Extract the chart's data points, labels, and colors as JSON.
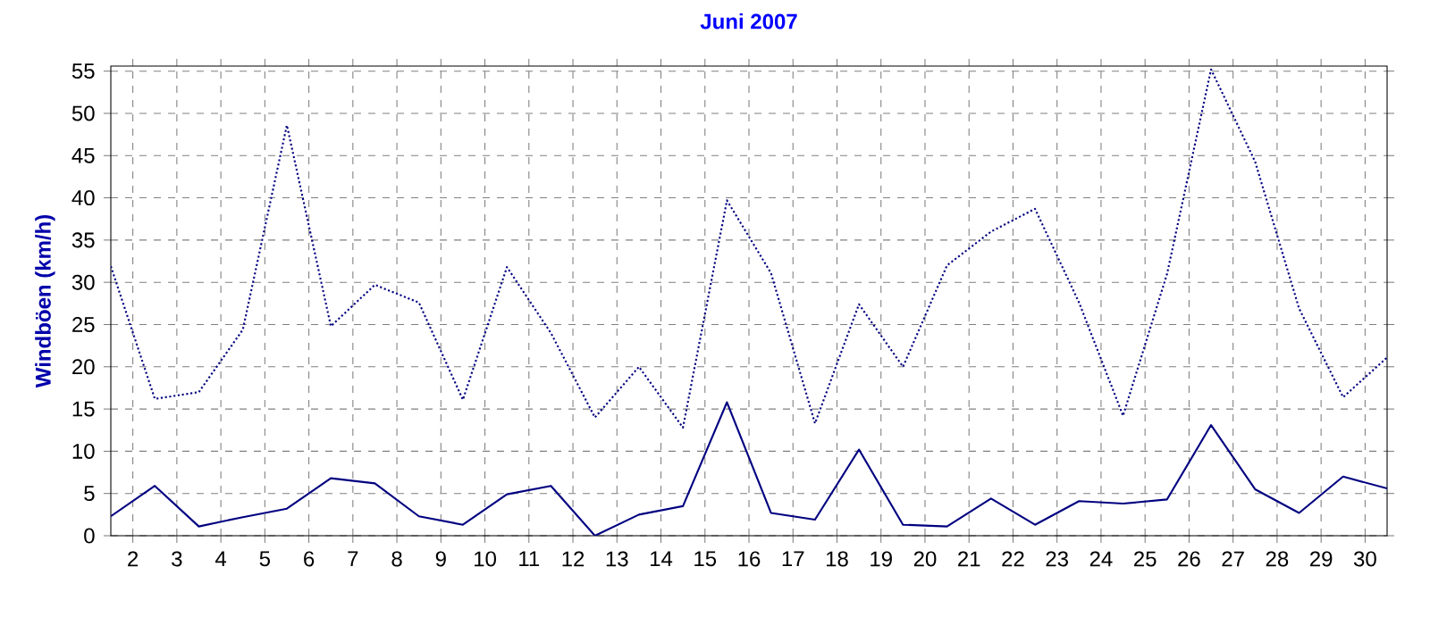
{
  "chart_data": {
    "type": "line",
    "title": "Juni 2007",
    "ylabel": "Windböen  (km/h)",
    "x": [
      1.5,
      2.5,
      3.5,
      4.5,
      5.5,
      6.5,
      7.5,
      8.5,
      9.5,
      10.5,
      11.5,
      12.5,
      13.5,
      14.5,
      15.5,
      16.5,
      17.5,
      18.5,
      19.5,
      20.5,
      21.5,
      22.5,
      23.5,
      24.5,
      25.5,
      26.5,
      27.5,
      28.5,
      29.5,
      30.5
    ],
    "series": [
      {
        "color": "#000080",
        "line_style": "dotted",
        "values": [
          31.9,
          16.2,
          17.0,
          24.4,
          48.6,
          24.8,
          29.7,
          27.6,
          16.1,
          31.8,
          24.0,
          14.0,
          20.0,
          12.8,
          39.7,
          31.1,
          13.3,
          27.4,
          20.0,
          32.0,
          36.0,
          38.7,
          27.6,
          14.2,
          31.0,
          55.2,
          44.3,
          26.9,
          16.4,
          21.1
        ]
      },
      {
        "color": "#000080",
        "line_style": "solid",
        "values": [
          2.3,
          5.9,
          1.1,
          2.2,
          3.2,
          6.8,
          6.2,
          2.3,
          1.3,
          4.9,
          5.9,
          0,
          2.5,
          3.5,
          15.8,
          2.7,
          1.9,
          10.2,
          1.3,
          1.1,
          4.4,
          1.3,
          4.1,
          3.8,
          4.3,
          13.1,
          5.5,
          2.7,
          7.0,
          5.6
        ]
      }
    ],
    "xlim": [
      1.5,
      30.5
    ],
    "ylim": [
      0,
      55.6
    ],
    "xticks": [
      2,
      3,
      4,
      5,
      6,
      7,
      8,
      9,
      10,
      11,
      12,
      13,
      14,
      15,
      16,
      17,
      18,
      19,
      20,
      21,
      22,
      23,
      24,
      25,
      26,
      27,
      28,
      29,
      30
    ],
    "yticks": [
      0,
      5,
      10,
      15,
      20,
      25,
      30,
      35,
      40,
      45,
      50,
      55
    ],
    "grid": true,
    "marker": "none"
  }
}
